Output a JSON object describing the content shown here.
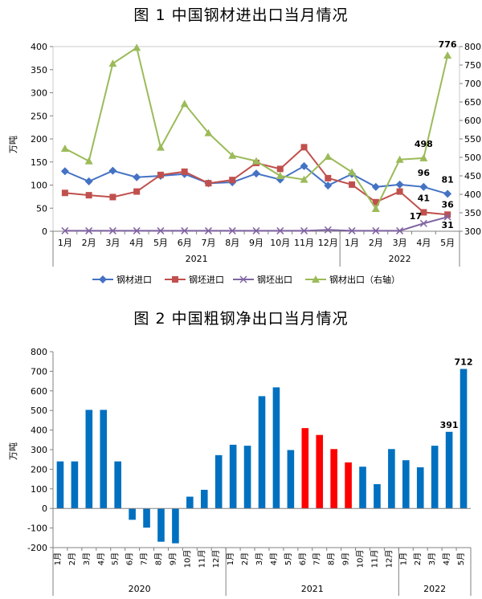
{
  "chart_data": [
    {
      "type": "line",
      "title": "图 1  中国钢材进出口当月情况",
      "ylabel": "万吨",
      "ylim": [
        0,
        400
      ],
      "y2lim": [
        300,
        800
      ],
      "yticks": [
        0,
        50,
        100,
        150,
        200,
        250,
        300,
        350,
        400
      ],
      "y2ticks": [
        300,
        350,
        400,
        450,
        500,
        550,
        600,
        650,
        700,
        750,
        800
      ],
      "categories": [
        "1月",
        "2月",
        "3月",
        "4月",
        "5月",
        "6月",
        "7月",
        "8月",
        "9月",
        "10月",
        "11月",
        "12月",
        "1月",
        "2月",
        "3月",
        "4月",
        "5月"
      ],
      "groups": [
        {
          "label": "2021",
          "count": 12
        },
        {
          "label": "2022",
          "count": 5
        }
      ],
      "series": [
        {
          "name": "钢材进口",
          "axis": "left",
          "color": "#4472c4",
          "marker": "diamond",
          "values": [
            130,
            108,
            131,
            117,
            120,
            124,
            104,
            106,
            125,
            112,
            141,
            99,
            124,
            96,
            101,
            96,
            81
          ],
          "labels": {
            "15": "96",
            "16": "81"
          }
        },
        {
          "name": "钢坯进口",
          "axis": "left",
          "color": "#c0504d",
          "marker": "square",
          "values": [
            83,
            78,
            74,
            86,
            122,
            129,
            104,
            111,
            148,
            135,
            182,
            115,
            101,
            63,
            86,
            41,
            36
          ],
          "labels": {
            "15": "41",
            "16": "36"
          }
        },
        {
          "name": "钢坯出口",
          "axis": "left",
          "color": "#8064a2",
          "marker": "x",
          "values": [
            1,
            1,
            1,
            1,
            1,
            1,
            1,
            1,
            1,
            1,
            1,
            3,
            1,
            1,
            1,
            17,
            31
          ],
          "labels": {
            "15": "17",
            "16": "31"
          }
        },
        {
          "name": "钢材出口（右轴）",
          "axis": "right",
          "color": "#9bbb59",
          "marker": "triangle",
          "values": [
            524,
            490,
            754,
            797,
            527,
            645,
            566,
            505,
            490,
            450,
            440,
            502,
            460,
            361,
            494,
            498,
            776
          ],
          "labels": {
            "15": "498",
            "16": "776"
          }
        }
      ]
    },
    {
      "type": "bar",
      "title": "图 2  中国粗钢净出口当月情况",
      "ylabel": "万吨",
      "ylim": [
        -200,
        800
      ],
      "yticks": [
        -200,
        -100,
        0,
        100,
        200,
        300,
        400,
        500,
        600,
        700,
        800
      ],
      "categories": [
        "1月",
        "2月",
        "3月",
        "4月",
        "5月",
        "6月",
        "7月",
        "8月",
        "9月",
        "10月",
        "11月",
        "12月",
        "1月",
        "2月",
        "3月",
        "4月",
        "5月",
        "6月",
        "7月",
        "8月",
        "9月",
        "10月",
        "11月",
        "12月",
        "1月",
        "2月",
        "3月",
        "4月",
        "5月"
      ],
      "groups": [
        {
          "label": "2020",
          "count": 12
        },
        {
          "label": "2021",
          "count": 12
        },
        {
          "label": "2022",
          "count": 5
        }
      ],
      "values": [
        240,
        240,
        503,
        503,
        240,
        -58,
        -98,
        -170,
        -178,
        60,
        95,
        272,
        325,
        320,
        573,
        618,
        298,
        410,
        375,
        303,
        235,
        213,
        124,
        303,
        246,
        210,
        320,
        391,
        712
      ],
      "colors": {
        "default": "#0070c0",
        "highlight": "#ff0000",
        "highlight_indices": [
          17,
          18,
          19,
          20
        ]
      },
      "labels": {
        "27": "391",
        "28": "712"
      }
    }
  ]
}
